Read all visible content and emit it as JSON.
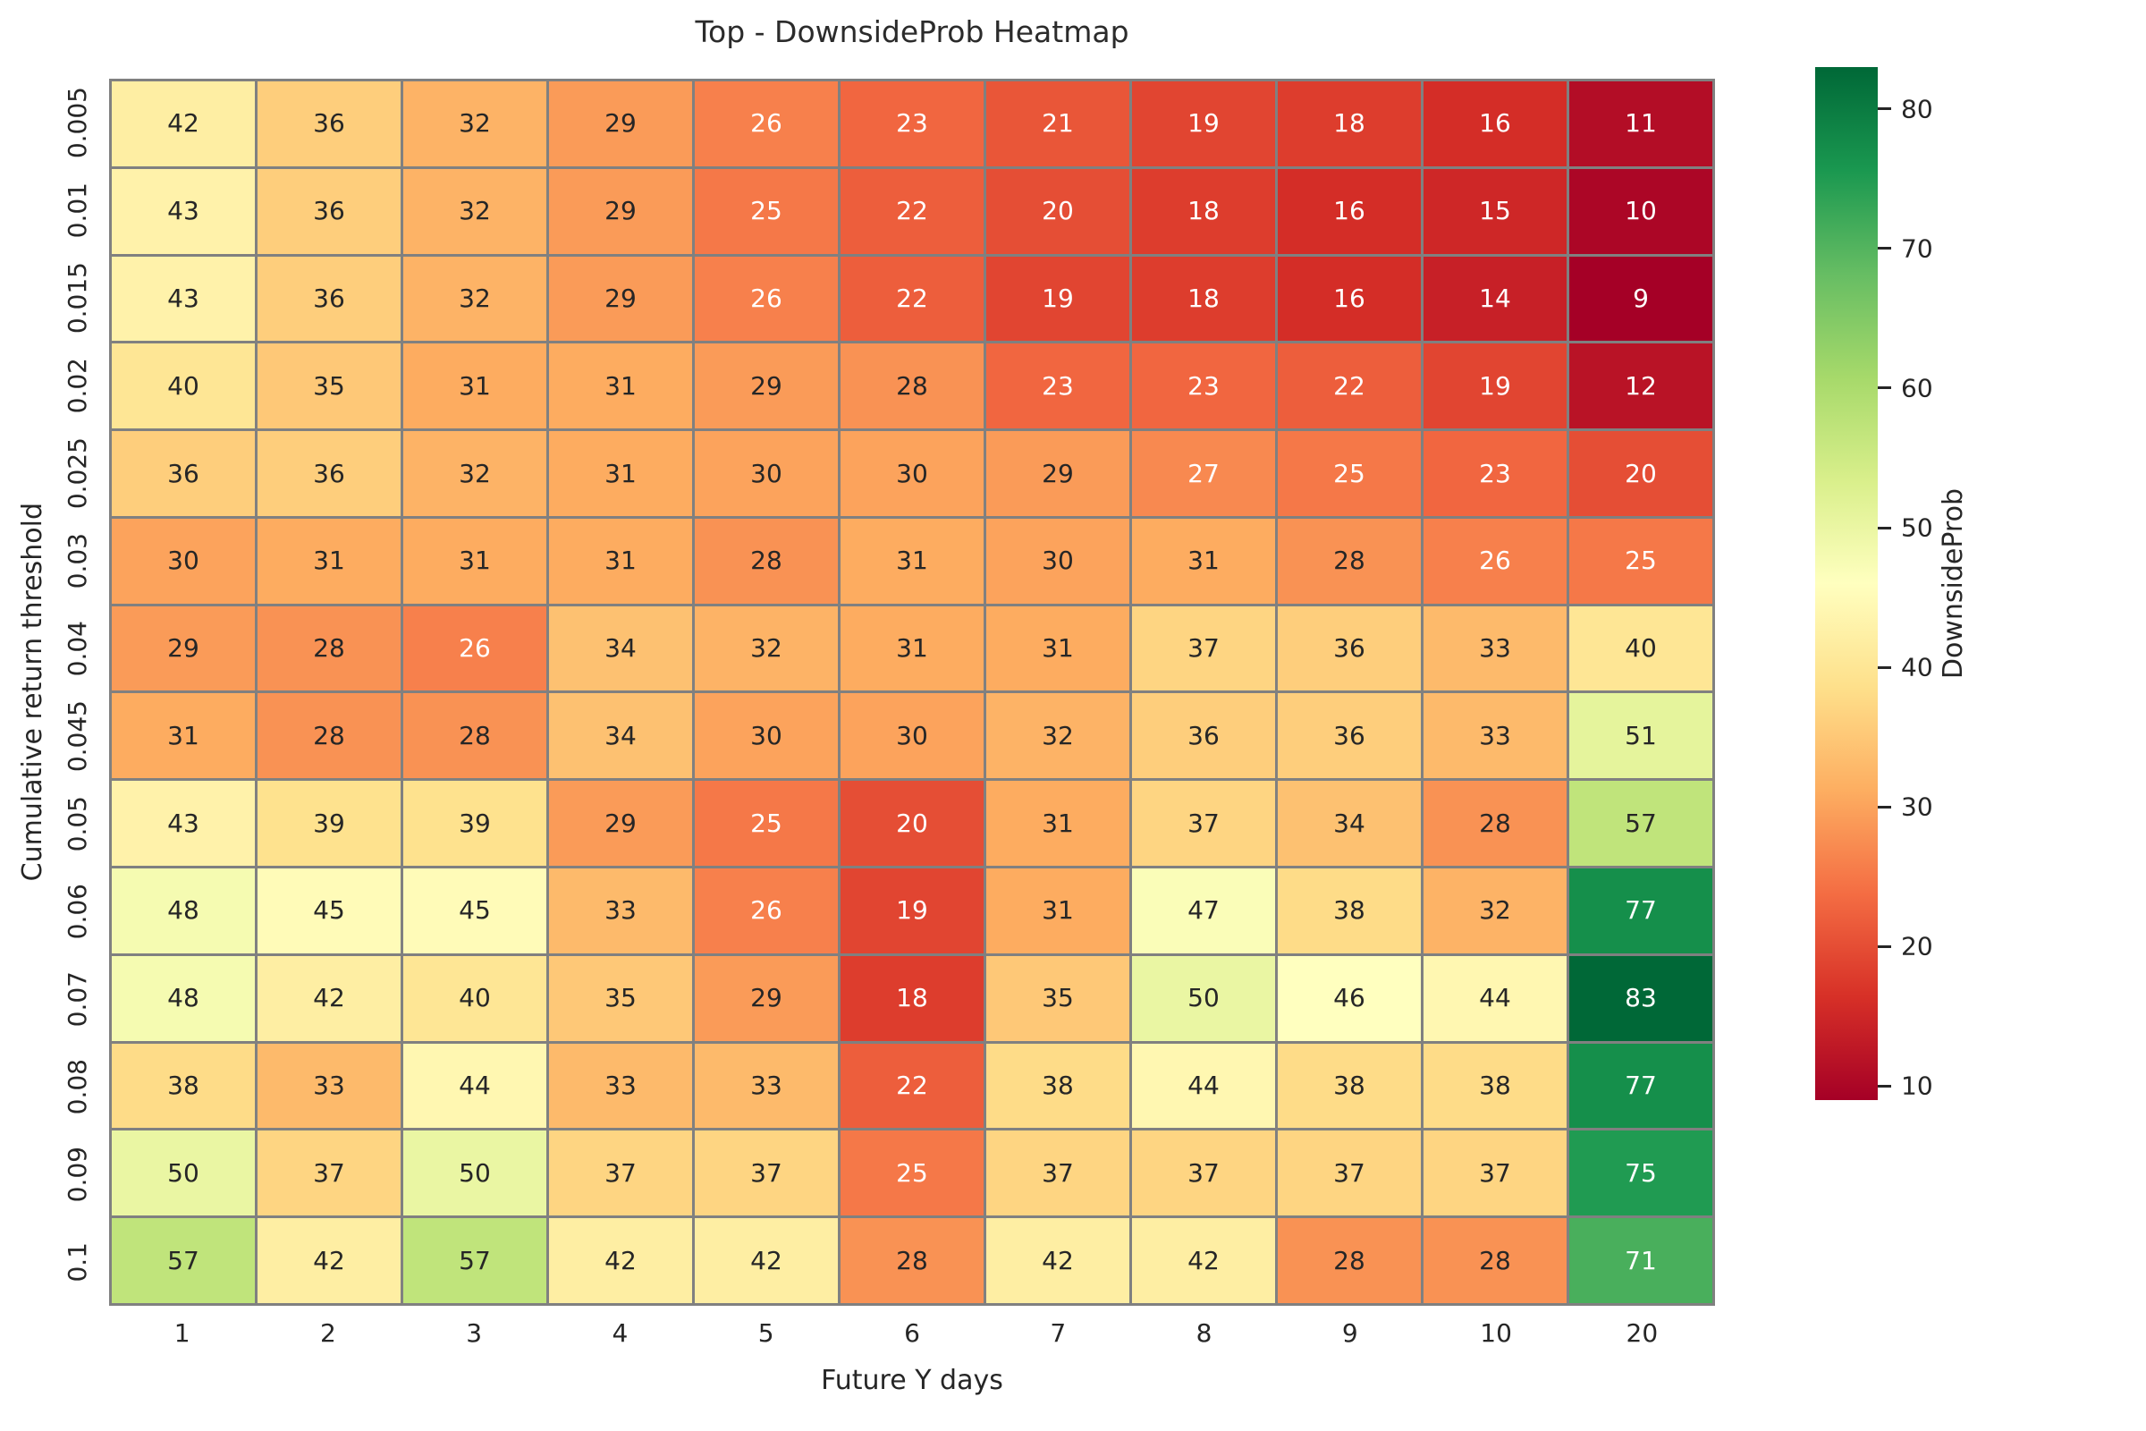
{
  "chart_data": {
    "type": "heatmap",
    "title": "Top - DownsideProb Heatmap",
    "xlabel": "Future Y days",
    "ylabel": "Cumulative return threshold",
    "x_categories": [
      "1",
      "2",
      "3",
      "4",
      "5",
      "6",
      "7",
      "8",
      "9",
      "10",
      "20"
    ],
    "y_categories": [
      "0.005",
      "0.01",
      "0.015",
      "0.02",
      "0.025",
      "0.03",
      "0.04",
      "0.045",
      "0.05",
      "0.06",
      "0.07",
      "0.08",
      "0.09",
      "0.1"
    ],
    "values": [
      [
        42,
        36,
        32,
        29,
        26,
        23,
        21,
        19,
        18,
        16,
        11
      ],
      [
        43,
        36,
        32,
        29,
        25,
        22,
        20,
        18,
        16,
        15,
        10
      ],
      [
        43,
        36,
        32,
        29,
        26,
        22,
        19,
        18,
        16,
        14,
        9
      ],
      [
        40,
        35,
        31,
        31,
        29,
        28,
        23,
        23,
        22,
        19,
        12
      ],
      [
        36,
        36,
        32,
        31,
        30,
        30,
        29,
        27,
        25,
        23,
        20
      ],
      [
        30,
        31,
        31,
        31,
        28,
        31,
        30,
        31,
        28,
        26,
        25
      ],
      [
        29,
        28,
        26,
        34,
        32,
        31,
        31,
        37,
        36,
        33,
        40
      ],
      [
        31,
        28,
        28,
        34,
        30,
        30,
        32,
        36,
        36,
        33,
        51
      ],
      [
        43,
        39,
        39,
        29,
        25,
        20,
        31,
        37,
        34,
        28,
        57
      ],
      [
        48,
        45,
        45,
        33,
        26,
        19,
        31,
        47,
        38,
        32,
        77
      ],
      [
        48,
        42,
        40,
        35,
        29,
        18,
        35,
        50,
        46,
        44,
        83
      ],
      [
        38,
        33,
        44,
        33,
        33,
        22,
        38,
        44,
        38,
        38,
        77
      ],
      [
        50,
        37,
        50,
        37,
        37,
        25,
        37,
        37,
        37,
        37,
        75
      ],
      [
        57,
        42,
        57,
        42,
        42,
        28,
        42,
        42,
        28,
        28,
        71
      ]
    ],
    "colorbar": {
      "label": "DownsideProb",
      "ticks": [
        10,
        20,
        30,
        40,
        50,
        60,
        70,
        80
      ],
      "vmin": 9,
      "vmax": 83,
      "colormap": "RdYlGn",
      "colormap_stops": [
        "#a50026",
        "#d73027",
        "#f46d43",
        "#fdae61",
        "#fee08b",
        "#ffffbf",
        "#d9ef8b",
        "#a6d96a",
        "#66bd63",
        "#1a9850",
        "#006837"
      ]
    },
    "grid_line_color": "#808080",
    "annotation_dark_color": "#262626",
    "annotation_light_color": "#ffffff",
    "background": "#ffffff"
  }
}
